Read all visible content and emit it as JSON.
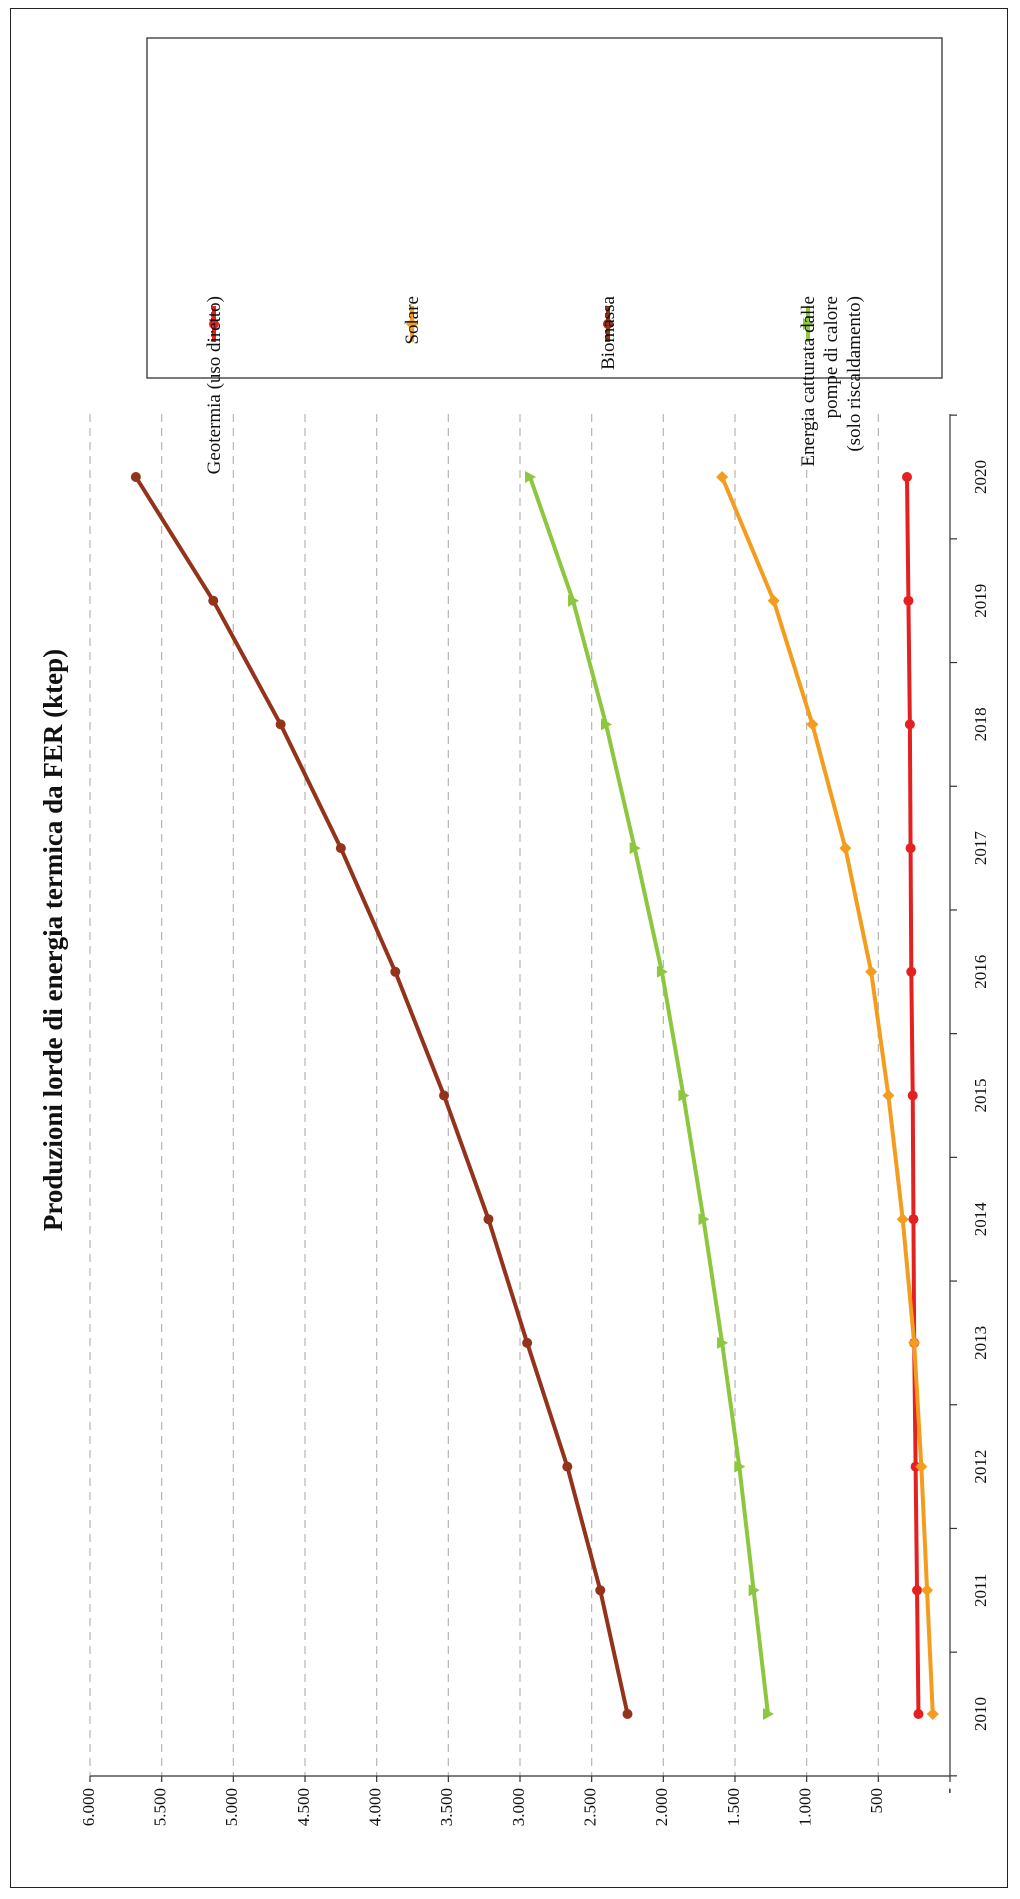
{
  "chart_data": {
    "type": "line",
    "title": "Produzioni lorde di energia termica da FER (ktep)",
    "xlabel": "",
    "ylabel": "",
    "x": [
      "2010",
      "2011",
      "2012",
      "2013",
      "2014",
      "2015",
      "2016",
      "2017",
      "2018",
      "2019",
      "2020"
    ],
    "ylim": [
      0,
      6000
    ],
    "y_ticks": [
      {
        "value": 0,
        "label": "-"
      },
      {
        "value": 500,
        "label": "500"
      },
      {
        "value": 1000,
        "label": "1.000"
      },
      {
        "value": 1500,
        "label": "1.500"
      },
      {
        "value": 2000,
        "label": "2.000"
      },
      {
        "value": 2500,
        "label": "2.500"
      },
      {
        "value": 3000,
        "label": "3.000"
      },
      {
        "value": 3500,
        "label": "3.500"
      },
      {
        "value": 4000,
        "label": "4.000"
      },
      {
        "value": 4500,
        "label": "4.500"
      },
      {
        "value": 5000,
        "label": "5.000"
      },
      {
        "value": 5500,
        "label": "5.500"
      },
      {
        "value": 6000,
        "label": "6.000"
      }
    ],
    "grid": true,
    "orientation": "rotated 90 degrees counter-clockwise",
    "legend_position": "top-right",
    "series": [
      {
        "name": "Geotermia (uso diretto)",
        "color": "#e42020",
        "marker": "circle",
        "values": [
          220,
          230,
          240,
          250,
          255,
          260,
          270,
          275,
          280,
          290,
          300
        ]
      },
      {
        "name": "Solare",
        "color": "#f39c1e",
        "marker": "diamond",
        "values": [
          120,
          160,
          200,
          250,
          330,
          430,
          550,
          730,
          960,
          1230,
          1590
        ]
      },
      {
        "name": "Biomassa",
        "color": "#93331b",
        "marker": "circle",
        "values": [
          2250,
          2440,
          2670,
          2950,
          3220,
          3530,
          3870,
          4250,
          4670,
          5140,
          5680
        ]
      },
      {
        "name": "Energia catturata dalle pompe di calore (solo riscaldamento)",
        "legend_lines": [
          "Energia catturata dalle",
          "pompe di calore",
          "(solo riscaldamento)"
        ],
        "color": "#8dc63f",
        "marker": "triangle",
        "values": [
          1270,
          1370,
          1470,
          1590,
          1720,
          1860,
          2010,
          2200,
          2400,
          2630,
          2930
        ]
      }
    ]
  }
}
